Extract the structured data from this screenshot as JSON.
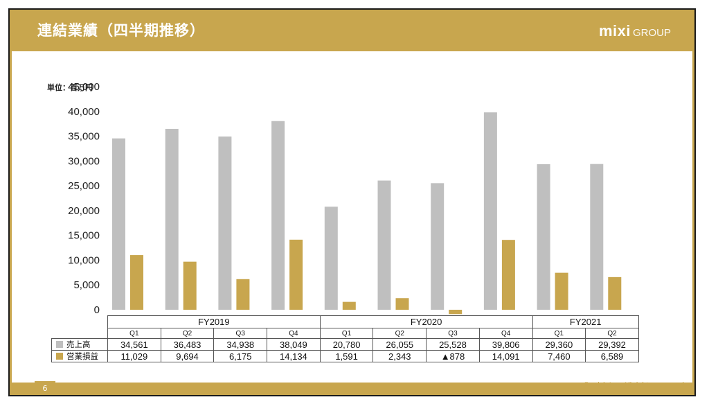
{
  "slide": {
    "title": "連結業績（四半期推移）",
    "logo_mark": "mixi",
    "logo_group": "GROUP",
    "page_number": "6",
    "copyright": "© mixi, Inc. All rights reserved.",
    "unit_label": "単位：百万円"
  },
  "colors": {
    "accent": "#c8a64e",
    "sales": "#bfbfbf",
    "operating": "#c8a64e"
  },
  "chart_data": {
    "type": "bar",
    "fiscal_years": [
      {
        "label": "FY2019",
        "quarters": 4
      },
      {
        "label": "FY2020",
        "quarters": 4
      },
      {
        "label": "FY2021",
        "quarters": 2
      }
    ],
    "categories": [
      "Q1",
      "Q2",
      "Q3",
      "Q4",
      "Q1",
      "Q2",
      "Q3",
      "Q4",
      "Q1",
      "Q2"
    ],
    "series": [
      {
        "name": "売上高",
        "values": [
          34561,
          36483,
          34938,
          38049,
          20780,
          26055,
          25528,
          39806,
          29360,
          29392
        ],
        "labels": [
          "34,561",
          "36,483",
          "34,938",
          "38,049",
          "20,780",
          "26,055",
          "25,528",
          "39,806",
          "29,360",
          "29,392"
        ]
      },
      {
        "name": "営業損益",
        "values": [
          11029,
          9694,
          6175,
          14134,
          1591,
          2343,
          -878,
          14091,
          7460,
          6589
        ],
        "labels": [
          "11,029",
          "9,694",
          "6,175",
          "14,134",
          "1,591",
          "2,343",
          "▲878",
          "14,091",
          "7,460",
          "6,589"
        ]
      }
    ],
    "ylim": [
      0,
      45000
    ],
    "yticks": [
      0,
      5000,
      10000,
      15000,
      20000,
      25000,
      30000,
      35000,
      40000,
      45000
    ],
    "ytick_labels": [
      "0",
      "5,000",
      "10,000",
      "15,000",
      "20,000",
      "25,000",
      "30,000",
      "35,000",
      "40,000",
      "45,000"
    ],
    "grid": false,
    "legend": "data-table"
  }
}
